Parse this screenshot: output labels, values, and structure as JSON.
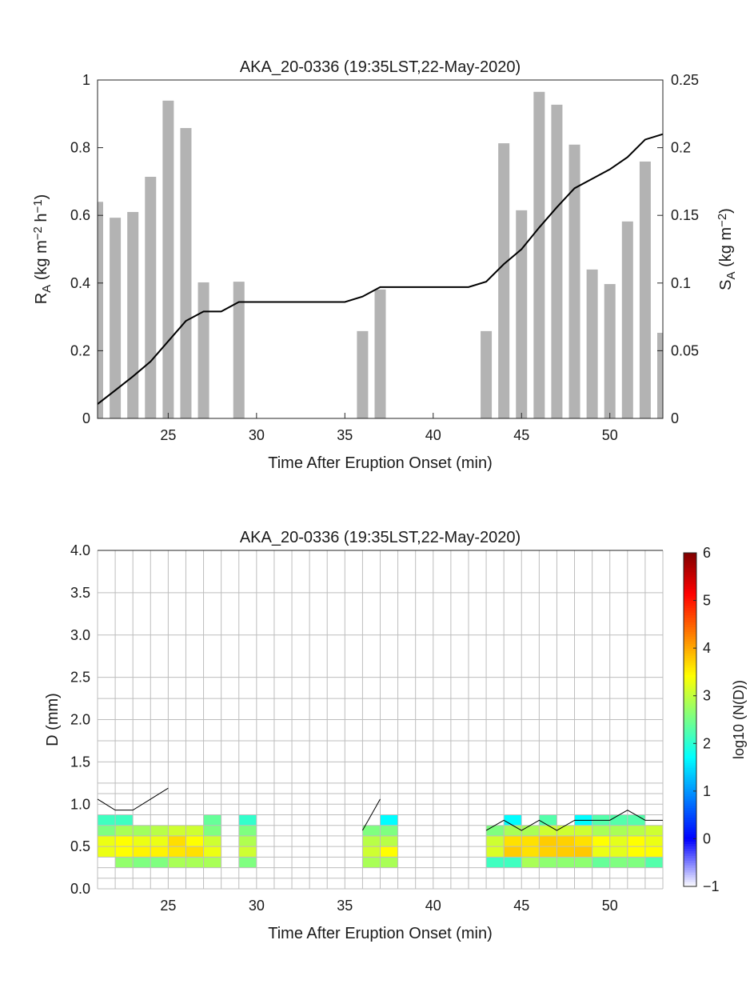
{
  "chart_data": [
    {
      "type": "bar+line",
      "title": "AKA_20-0336 (19:35LST,22-May-2020)",
      "xlabel": "Time After Eruption Onset (min)",
      "ylabel_parts": [
        [
          "R",
          "n"
        ],
        [
          "A",
          "sub"
        ],
        [
          " (kg m",
          "n"
        ],
        [
          "−2",
          "sup"
        ],
        [
          " h",
          "n"
        ],
        [
          "−1",
          "sup"
        ],
        [
          ")",
          "n"
        ]
      ],
      "y2label_parts": [
        [
          "S",
          "n"
        ],
        [
          "A",
          "sub"
        ],
        [
          " (kg m",
          "n"
        ],
        [
          "−2",
          "sup"
        ],
        [
          ")",
          "n"
        ]
      ],
      "xlim": [
        21,
        53
      ],
      "ylim": [
        0,
        1
      ],
      "y2lim": [
        0,
        0.25
      ],
      "xticks": [
        25,
        30,
        35,
        40,
        45,
        50
      ],
      "yticks": [
        "0",
        "0.2",
        "0.4",
        "0.6",
        "0.8",
        "1"
      ],
      "y2ticks": [
        "0",
        "0.05",
        "0.1",
        "0.15",
        "0.2",
        "0.25"
      ],
      "bar_color": "#b3b3b3",
      "line_color": "#000000",
      "bars": {
        "x": [
          21,
          22,
          23,
          24,
          25,
          26,
          27,
          29,
          36,
          37,
          43,
          44,
          45,
          46,
          47,
          48,
          49,
          50,
          51,
          52,
          53
        ],
        "values": [
          0.64,
          0.593,
          0.61,
          0.714,
          0.939,
          0.858,
          0.402,
          0.404,
          0.258,
          0.381,
          0.258,
          0.813,
          0.615,
          0.965,
          0.927,
          0.809,
          0.44,
          0.397,
          0.582,
          0.759,
          0.253
        ]
      },
      "line": {
        "x": [
          21,
          22,
          23,
          24,
          25,
          26,
          27,
          28,
          29,
          30,
          31,
          32,
          33,
          34,
          35,
          36,
          37,
          38,
          39,
          40,
          41,
          42,
          43,
          44,
          45,
          46,
          47,
          48,
          49,
          50,
          51,
          52,
          53
        ],
        "values": [
          0.0106,
          0.0207,
          0.031,
          0.042,
          0.057,
          0.072,
          0.079,
          0.079,
          0.086,
          0.086,
          0.086,
          0.086,
          0.086,
          0.086,
          0.086,
          0.09,
          0.097,
          0.097,
          0.097,
          0.097,
          0.097,
          0.097,
          0.101,
          0.114,
          0.125,
          0.141,
          0.156,
          0.17,
          0.177,
          0.184,
          0.193,
          0.206,
          0.21
        ]
      }
    },
    {
      "type": "heatmap",
      "title": "AKA_20-0336 (19:35LST,22-May-2020)",
      "xlabel": "Time After Eruption Onset (min)",
      "ylabel": "D (mm)",
      "colorbar_label": "log10 (N(D))",
      "xlim": [
        21,
        53
      ],
      "ylim": [
        0,
        4
      ],
      "xticks": [
        25,
        30,
        35,
        40,
        45,
        50
      ],
      "yticks": [
        "0.0",
        "0.5",
        "1.0",
        "1.5",
        "2.0",
        "2.5",
        "3.0",
        "3.5",
        "4.0"
      ],
      "clim": [
        -1,
        6
      ],
      "cticks": [
        "−1",
        "0",
        "1",
        "2",
        "3",
        "4",
        "5",
        "6"
      ],
      "bin_edges": [
        0,
        0.125,
        0.25,
        0.375,
        0.5,
        0.625,
        0.75,
        0.875,
        1.0,
        1.125,
        1.25,
        1.5,
        1.75,
        2.0,
        2.25,
        2.5,
        3.0,
        3.5,
        4.0
      ],
      "cells": [
        [
          21,
          2,
          null
        ],
        [
          21,
          3,
          3.3
        ],
        [
          21,
          4,
          3.3
        ],
        [
          21,
          5,
          2.57
        ],
        [
          21,
          6,
          2.14
        ],
        [
          22,
          2,
          2.7
        ],
        [
          22,
          3,
          3.43
        ],
        [
          22,
          4,
          3.43
        ],
        [
          22,
          5,
          2.85
        ],
        [
          22,
          6,
          2.14
        ],
        [
          23,
          2,
          2.57
        ],
        [
          23,
          3,
          3.5
        ],
        [
          23,
          4,
          3.3
        ],
        [
          23,
          5,
          2.8
        ],
        [
          24,
          2,
          2.57
        ],
        [
          24,
          3,
          3.5
        ],
        [
          24,
          4,
          3.3
        ],
        [
          24,
          5,
          2.95
        ],
        [
          25,
          2,
          2.85
        ],
        [
          25,
          3,
          3.6
        ],
        [
          25,
          4,
          3.65
        ],
        [
          25,
          5,
          3.1
        ],
        [
          26,
          2,
          2.85
        ],
        [
          26,
          3,
          3.63
        ],
        [
          26,
          4,
          3.43
        ],
        [
          26,
          5,
          3.1
        ],
        [
          27,
          2,
          2.85
        ],
        [
          27,
          3,
          3.3
        ],
        [
          27,
          4,
          3.1
        ],
        [
          27,
          5,
          2.57
        ],
        [
          27,
          6,
          2.4
        ],
        [
          29,
          2,
          2.57
        ],
        [
          29,
          3,
          3.1
        ],
        [
          29,
          4,
          2.9
        ],
        [
          29,
          5,
          2.57
        ],
        [
          29,
          6,
          2.06
        ],
        [
          36,
          2,
          2.85
        ],
        [
          36,
          3,
          3.1
        ],
        [
          36,
          4,
          2.95
        ],
        [
          36,
          5,
          2.57
        ],
        [
          37,
          2,
          2.85
        ],
        [
          37,
          3,
          3.43
        ],
        [
          37,
          4,
          2.95
        ],
        [
          37,
          5,
          2.57
        ],
        [
          37,
          6,
          1.71
        ],
        [
          43,
          2,
          2.14
        ],
        [
          43,
          3,
          3.18
        ],
        [
          43,
          4,
          3.1
        ],
        [
          43,
          5,
          2.57
        ],
        [
          44,
          2,
          2.14
        ],
        [
          44,
          3,
          3.77
        ],
        [
          44,
          4,
          3.63
        ],
        [
          44,
          5,
          2.85
        ],
        [
          44,
          6,
          1.71
        ],
        [
          45,
          2,
          2.85
        ],
        [
          45,
          3,
          3.63
        ],
        [
          45,
          4,
          3.63
        ],
        [
          45,
          5,
          2.85
        ],
        [
          46,
          2,
          2.67
        ],
        [
          46,
          3,
          3.74
        ],
        [
          46,
          4,
          3.77
        ],
        [
          46,
          5,
          3.1
        ],
        [
          46,
          6,
          2.28
        ],
        [
          47,
          2,
          2.67
        ],
        [
          47,
          3,
          3.77
        ],
        [
          47,
          4,
          3.74
        ],
        [
          47,
          5,
          3.1
        ],
        [
          48,
          2,
          2.67
        ],
        [
          48,
          3,
          3.8
        ],
        [
          48,
          4,
          3.63
        ],
        [
          48,
          5,
          3.1
        ],
        [
          48,
          6,
          1.71
        ],
        [
          49,
          2,
          2.4
        ],
        [
          49,
          3,
          3.3
        ],
        [
          49,
          4,
          3.43
        ],
        [
          49,
          5,
          2.85
        ],
        [
          49,
          6,
          2.28
        ],
        [
          50,
          2,
          2.57
        ],
        [
          50,
          3,
          3.25
        ],
        [
          50,
          4,
          3.25
        ],
        [
          50,
          5,
          2.85
        ],
        [
          50,
          6,
          2.28
        ],
        [
          51,
          2,
          2.57
        ],
        [
          51,
          3,
          3.43
        ],
        [
          51,
          4,
          3.43
        ],
        [
          51,
          5,
          2.95
        ],
        [
          51,
          6,
          2.28
        ],
        [
          52,
          2,
          2.28
        ],
        [
          52,
          3,
          3.43
        ],
        [
          52,
          4,
          3.3
        ],
        [
          52,
          5,
          3.1
        ]
      ],
      "line_segments": [
        {
          "x": [
            21,
            22,
            23,
            24,
            25
          ],
          "values": [
            1.06,
            0.93,
            0.93,
            1.06,
            1.19
          ]
        },
        {
          "x": [
            36,
            37
          ],
          "values": [
            0.69,
            1.06
          ]
        },
        {
          "x": [
            43,
            44,
            45,
            46,
            47,
            48,
            49,
            50,
            51,
            52,
            53
          ],
          "values": [
            0.69,
            0.81,
            0.69,
            0.81,
            0.69,
            0.81,
            0.81,
            0.81,
            0.93,
            0.81,
            0.81
          ]
        }
      ]
    }
  ]
}
